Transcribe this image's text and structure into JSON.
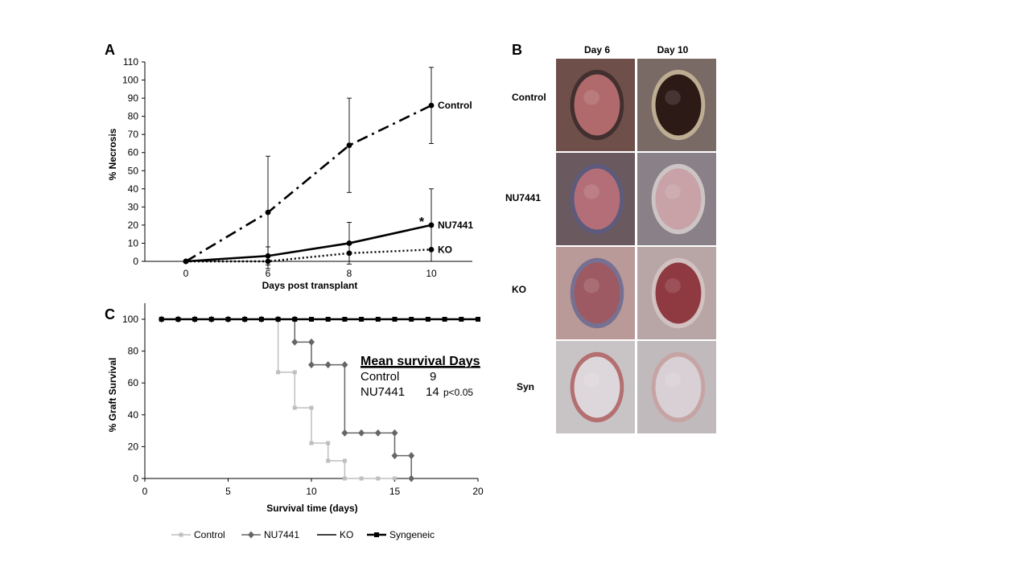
{
  "chart_data": [
    {
      "type": "line",
      "panel_label": "A",
      "xlabel": "Days post transplant",
      "ylabel": "% Necrosis",
      "x_categories": [
        0,
        6,
        8,
        10
      ],
      "ylim": [
        0,
        110
      ],
      "yticks": [
        0,
        10,
        20,
        30,
        40,
        50,
        60,
        70,
        80,
        90,
        100,
        110
      ],
      "series": [
        {
          "name": "Control",
          "style": "dash-dot",
          "points": [
            {
              "x": 0,
              "y": 0,
              "err": 0
            },
            {
              "x": 6,
              "y": 27,
              "err": 31
            },
            {
              "x": 8,
              "y": 64,
              "err": 26
            },
            {
              "x": 10,
              "y": 86,
              "err": 21
            }
          ]
        },
        {
          "name": "NU7441",
          "style": "solid",
          "points": [
            {
              "x": 0,
              "y": 0,
              "err": 0
            },
            {
              "x": 6,
              "y": 3,
              "err": 5
            },
            {
              "x": 8,
              "y": 10,
              "err": 11.5
            },
            {
              "x": 10,
              "y": 20,
              "err": 20
            }
          ]
        },
        {
          "name": "KO",
          "style": "dotted",
          "points": [
            {
              "x": 0,
              "y": 0,
              "err": 0
            },
            {
              "x": 6,
              "y": 0,
              "err": 0
            },
            {
              "x": 8,
              "y": 4.5,
              "err": 0
            },
            {
              "x": 10,
              "y": 6.5,
              "err": 0
            }
          ]
        }
      ],
      "annotations": [
        "*"
      ]
    },
    {
      "type": "line",
      "panel_label": "C",
      "xlabel": "Survival time (days)",
      "ylabel": "% Graft Survival",
      "xlim": [
        0,
        20
      ],
      "xticks": [
        0,
        5,
        10,
        15,
        20
      ],
      "ylim": [
        0,
        100
      ],
      "yticks": [
        0,
        20,
        40,
        60,
        80,
        100
      ],
      "legend_position": "bottom",
      "series": [
        {
          "name": "Control",
          "color": "#bfbfbf",
          "marker": "square",
          "line_width": 1.5,
          "steps": [
            [
              1,
              100
            ],
            [
              8,
              100
            ],
            [
              8,
              66.7
            ],
            [
              9,
              66.7
            ],
            [
              9,
              44.4
            ],
            [
              10,
              44.4
            ],
            [
              10,
              22.2
            ],
            [
              11,
              22.2
            ],
            [
              11,
              11.1
            ],
            [
              12,
              11.1
            ],
            [
              12,
              0
            ],
            [
              15,
              0
            ]
          ],
          "markers": [
            [
              1,
              100
            ],
            [
              2,
              100
            ],
            [
              3,
              100
            ],
            [
              4,
              100
            ],
            [
              5,
              100
            ],
            [
              6,
              100
            ],
            [
              7,
              100
            ],
            [
              8,
              100
            ],
            [
              8,
              66.7
            ],
            [
              9,
              66.7
            ],
            [
              9,
              44.4
            ],
            [
              10,
              44.4
            ],
            [
              10,
              22.2
            ],
            [
              11,
              22.2
            ],
            [
              11,
              11.1
            ],
            [
              12,
              11.1
            ],
            [
              12,
              0
            ],
            [
              13,
              0
            ],
            [
              14,
              0
            ],
            [
              15,
              0
            ]
          ]
        },
        {
          "name": "NU7441",
          "color": "#666666",
          "marker": "diamond",
          "line_width": 1.5,
          "steps": [
            [
              1,
              100
            ],
            [
              9,
              100
            ],
            [
              9,
              85.7
            ],
            [
              10,
              85.7
            ],
            [
              10,
              71.4
            ],
            [
              12,
              71.4
            ],
            [
              12,
              28.6
            ],
            [
              15,
              28.6
            ],
            [
              15,
              14.3
            ],
            [
              16,
              14.3
            ],
            [
              16,
              0
            ]
          ],
          "markers": [
            [
              1,
              100
            ],
            [
              2,
              100
            ],
            [
              3,
              100
            ],
            [
              4,
              100
            ],
            [
              5,
              100
            ],
            [
              6,
              100
            ],
            [
              7,
              100
            ],
            [
              8,
              100
            ],
            [
              9,
              100
            ],
            [
              9,
              85.7
            ],
            [
              10,
              85.7
            ],
            [
              10,
              71.4
            ],
            [
              11,
              71.4
            ],
            [
              12,
              71.4
            ],
            [
              12,
              28.6
            ],
            [
              13,
              28.6
            ],
            [
              14,
              28.6
            ],
            [
              15,
              28.6
            ],
            [
              15,
              14.3
            ],
            [
              16,
              14.3
            ],
            [
              16,
              0
            ]
          ]
        },
        {
          "name": "KO",
          "color": "#000000",
          "marker": "none",
          "line_width": 1.5,
          "steps": [
            [
              1,
              100
            ],
            [
              20,
              100
            ]
          ],
          "markers": []
        },
        {
          "name": "Syngeneic",
          "color": "#000000",
          "marker": "square",
          "line_width": 2.5,
          "steps": [
            [
              1,
              100
            ],
            [
              20,
              100
            ]
          ],
          "markers": [
            [
              1,
              100
            ],
            [
              2,
              100
            ],
            [
              3,
              100
            ],
            [
              4,
              100
            ],
            [
              5,
              100
            ],
            [
              6,
              100
            ],
            [
              7,
              100
            ],
            [
              8,
              100
            ],
            [
              9,
              100
            ],
            [
              10,
              100
            ],
            [
              11,
              100
            ],
            [
              12,
              100
            ],
            [
              13,
              100
            ],
            [
              14,
              100
            ],
            [
              15,
              100
            ],
            [
              16,
              100
            ],
            [
              17,
              100
            ],
            [
              18,
              100
            ],
            [
              19,
              100
            ],
            [
              20,
              100
            ]
          ]
        }
      ],
      "annotation": {
        "title": "Mean survival Days",
        "rows": [
          {
            "label": "Control",
            "value": "9",
            "note": ""
          },
          {
            "label": "NU7441",
            "value": "14",
            "note": "p<0.05"
          }
        ]
      }
    }
  ],
  "panel_b": {
    "panel_label": "B",
    "columns": [
      "Day 6",
      "Day 10"
    ],
    "rows": [
      "Control",
      "NU7441",
      "KO",
      "Syn"
    ],
    "photos": [
      [
        {
          "base": "#6e4f4a",
          "wound": "#b06a6c",
          "edge": "#3a2a2a"
        },
        {
          "base": "#7a6a66",
          "wound": "#2c1a16",
          "edge": "#c9b89a"
        }
      ],
      [
        {
          "base": "#6a5a60",
          "wound": "#b36e78",
          "edge": "#5a5a80"
        },
        {
          "base": "#8a8088",
          "wound": "#c8a2a6",
          "edge": "#d8d0d0"
        }
      ],
      [
        {
          "base": "#b99a98",
          "wound": "#9e5a62",
          "edge": "#6a6a90"
        },
        {
          "base": "#b8a6a6",
          "wound": "#8e3a40",
          "edge": "#d5c6c4"
        }
      ],
      [
        {
          "base": "#c8c4c6",
          "wound": "#ddd6da",
          "edge": "#b06060"
        },
        {
          "base": "#c0babc",
          "wound": "#d8d0d4",
          "edge": "#c8a0a0"
        }
      ]
    ]
  }
}
